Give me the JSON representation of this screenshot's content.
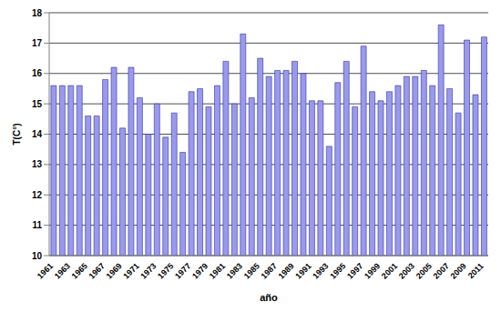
{
  "chart_data": {
    "type": "bar",
    "x_label": "año",
    "y_label": "T(C°)",
    "categories": [
      "1961",
      null,
      "1963",
      null,
      "1965",
      null,
      "1967",
      null,
      "1969",
      null,
      "1971",
      null,
      "1973",
      null,
      "1975",
      null,
      "1977",
      null,
      "1979",
      null,
      "1981",
      null,
      "1983",
      null,
      "1985",
      null,
      "1987",
      null,
      "1989",
      null,
      "1991",
      null,
      "1993",
      null,
      "1995",
      null,
      "1997",
      null,
      "1999",
      null,
      "2001",
      null,
      "2003",
      null,
      "2005",
      null,
      "2007",
      null,
      "2009",
      null,
      "2011"
    ],
    "values": [
      15.6,
      15.6,
      15.6,
      15.6,
      14.6,
      14.6,
      15.8,
      16.2,
      14.2,
      16.2,
      15.2,
      14.0,
      15.0,
      13.9,
      14.7,
      13.4,
      15.4,
      15.5,
      14.9,
      15.6,
      16.4,
      15.0,
      17.3,
      15.2,
      16.5,
      15.9,
      16.1,
      16.1,
      16.4,
      16.0,
      15.1,
      15.1,
      13.6,
      15.7,
      16.4,
      14.9,
      16.9,
      15.4,
      15.1,
      15.4,
      15.6,
      15.9,
      15.9,
      16.1,
      15.6,
      17.6,
      15.5,
      14.7,
      17.1,
      15.3,
      17.2
    ],
    "color": "#9999ee",
    "ylim": [
      10,
      18
    ],
    "yticks": [
      10,
      11,
      12,
      13,
      14,
      15,
      16,
      17,
      18
    ],
    "grid": true
  }
}
